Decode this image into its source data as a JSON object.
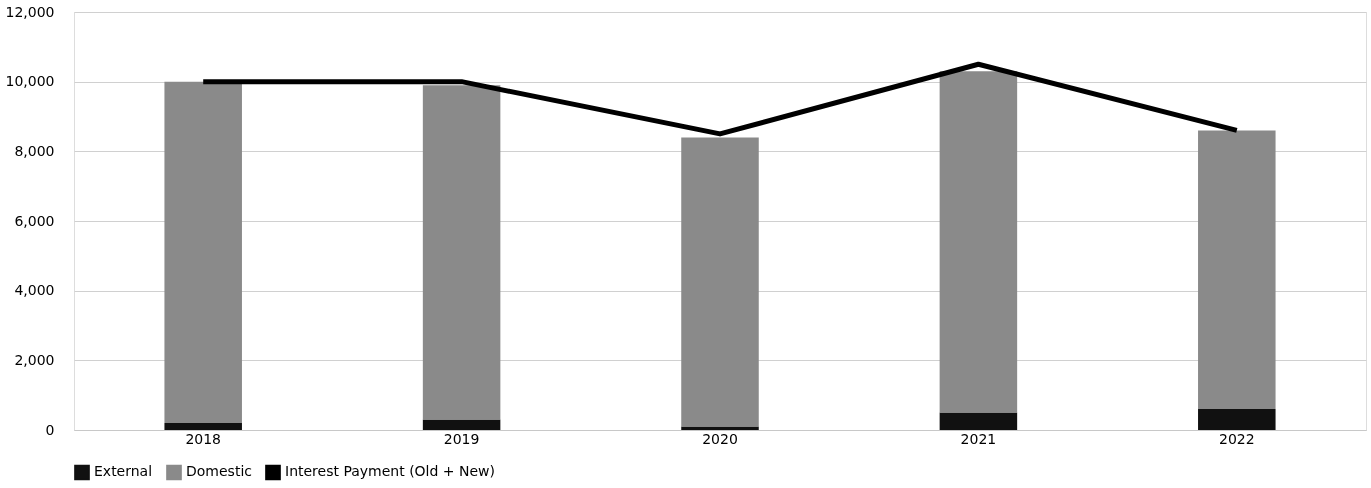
{
  "chart_data": {
    "type": "bar",
    "stacked": true,
    "categories": [
      "2018",
      "2019",
      "2020",
      "2021",
      "2022"
    ],
    "series": [
      {
        "name": "External",
        "color": "#111111",
        "values": [
          200,
          300,
          100,
          500,
          600
        ]
      },
      {
        "name": "Domestic",
        "color": "#8a8a8a",
        "values": [
          9800,
          9600,
          8300,
          9800,
          8000
        ]
      },
      {
        "name": "Interest Payment (Old + New)",
        "type": "line",
        "color": "#000000",
        "values": [
          10000,
          10000,
          8500,
          10500,
          8600
        ]
      }
    ],
    "ylim": [
      0,
      12000
    ],
    "yticks": [
      0,
      {
        "value": 2000,
        "label": "2,000"
      },
      {
        "value": 4000,
        "label": "4,000"
      },
      {
        "value": 6000,
        "label": "6,000"
      },
      {
        "value": 8000,
        "label": "8,000"
      },
      {
        "value": 10000,
        "label": "10,000"
      },
      {
        "value": 12000,
        "label": "12,000"
      }
    ],
    "grid": "y",
    "legend": "bottom"
  }
}
